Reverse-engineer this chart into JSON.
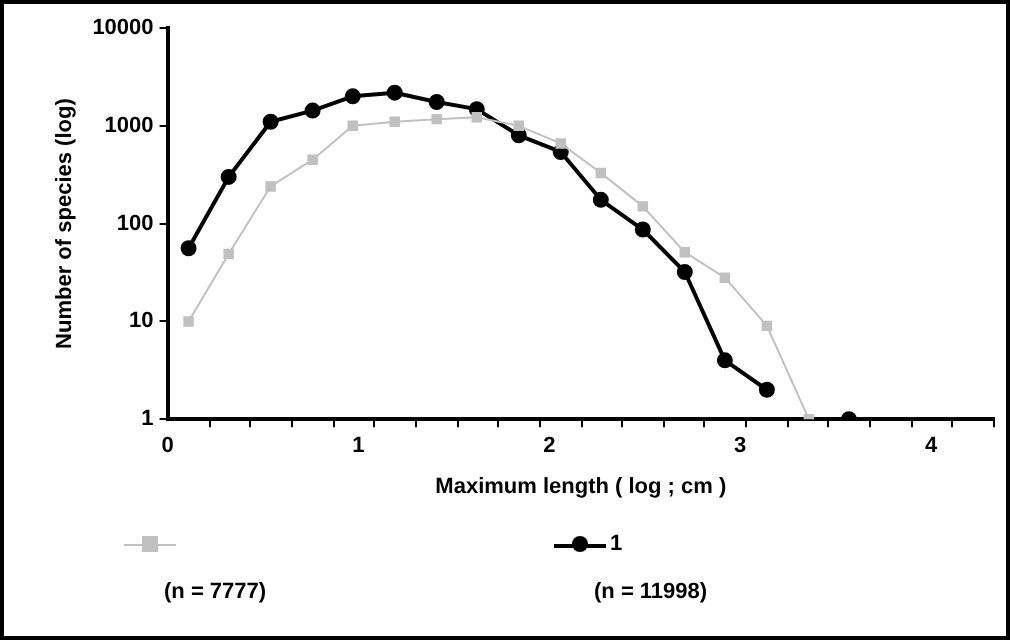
{
  "chart_data": {
    "type": "line",
    "xlabel": "Maximum length ( log ; cm )",
    "ylabel": "Number of species (log)",
    "log": "y",
    "grid": false,
    "legend": "bottom",
    "line_style": "solid",
    "xlim": [
      0,
      4.33
    ],
    "ylim": [
      1,
      10000
    ],
    "yticks": [
      1,
      10,
      100,
      1000,
      10000
    ],
    "xticks": [
      0,
      1,
      2,
      3,
      4,
      {
        "value": 0.22,
        "label": null
      },
      {
        "value": 0.43,
        "label": null
      },
      {
        "value": 0.65,
        "label": null
      },
      {
        "value": 0.87,
        "label": null
      },
      {
        "value": 1.08,
        "label": null
      },
      {
        "value": 1.3,
        "label": null
      },
      {
        "value": 1.52,
        "label": null
      },
      {
        "value": 1.73,
        "label": null
      },
      {
        "value": 1.95,
        "label": null
      },
      {
        "value": 2.17,
        "label": null
      },
      {
        "value": 2.38,
        "label": null
      },
      {
        "value": 2.6,
        "label": null
      },
      {
        "value": 2.81,
        "label": null
      },
      {
        "value": 3.03,
        "label": null
      },
      {
        "value": 3.25,
        "label": null
      },
      {
        "value": 3.46,
        "label": null
      },
      {
        "value": 3.68,
        "label": null
      },
      {
        "value": 3.9,
        "label": null
      },
      {
        "value": 4.11,
        "label": null
      },
      {
        "value": 4.33,
        "label": null
      }
    ],
    "series": [
      {
        "color": "#c0c0c0",
        "marker": "square",
        "x": [
          0.11,
          0.32,
          0.54,
          0.76,
          0.97,
          1.19,
          1.41,
          1.62,
          1.84,
          2.06,
          2.27,
          2.49,
          2.71,
          2.92,
          3.14,
          3.36
        ],
        "values": [
          10,
          49,
          240,
          450,
          1000,
          1100,
          1170,
          1220,
          1000,
          660,
          330,
          150,
          51,
          28,
          9,
          1
        ]
      },
      {
        "name": "1",
        "color": "#000000",
        "marker": "circle",
        "x": [
          0.11,
          0.32,
          0.54,
          0.76,
          0.97,
          1.19,
          1.41,
          1.62,
          1.84,
          2.06,
          2.27,
          2.49,
          2.71,
          2.92,
          3.14,
          3.36,
          3.57
        ],
        "values": [
          56,
          300,
          1100,
          1430,
          2000,
          2180,
          1750,
          1480,
          800,
          540,
          175,
          87,
          32,
          4,
          2,
          null,
          1
        ]
      }
    ],
    "annotations": [
      "(n = 7777)",
      "(n = 11998)"
    ]
  }
}
